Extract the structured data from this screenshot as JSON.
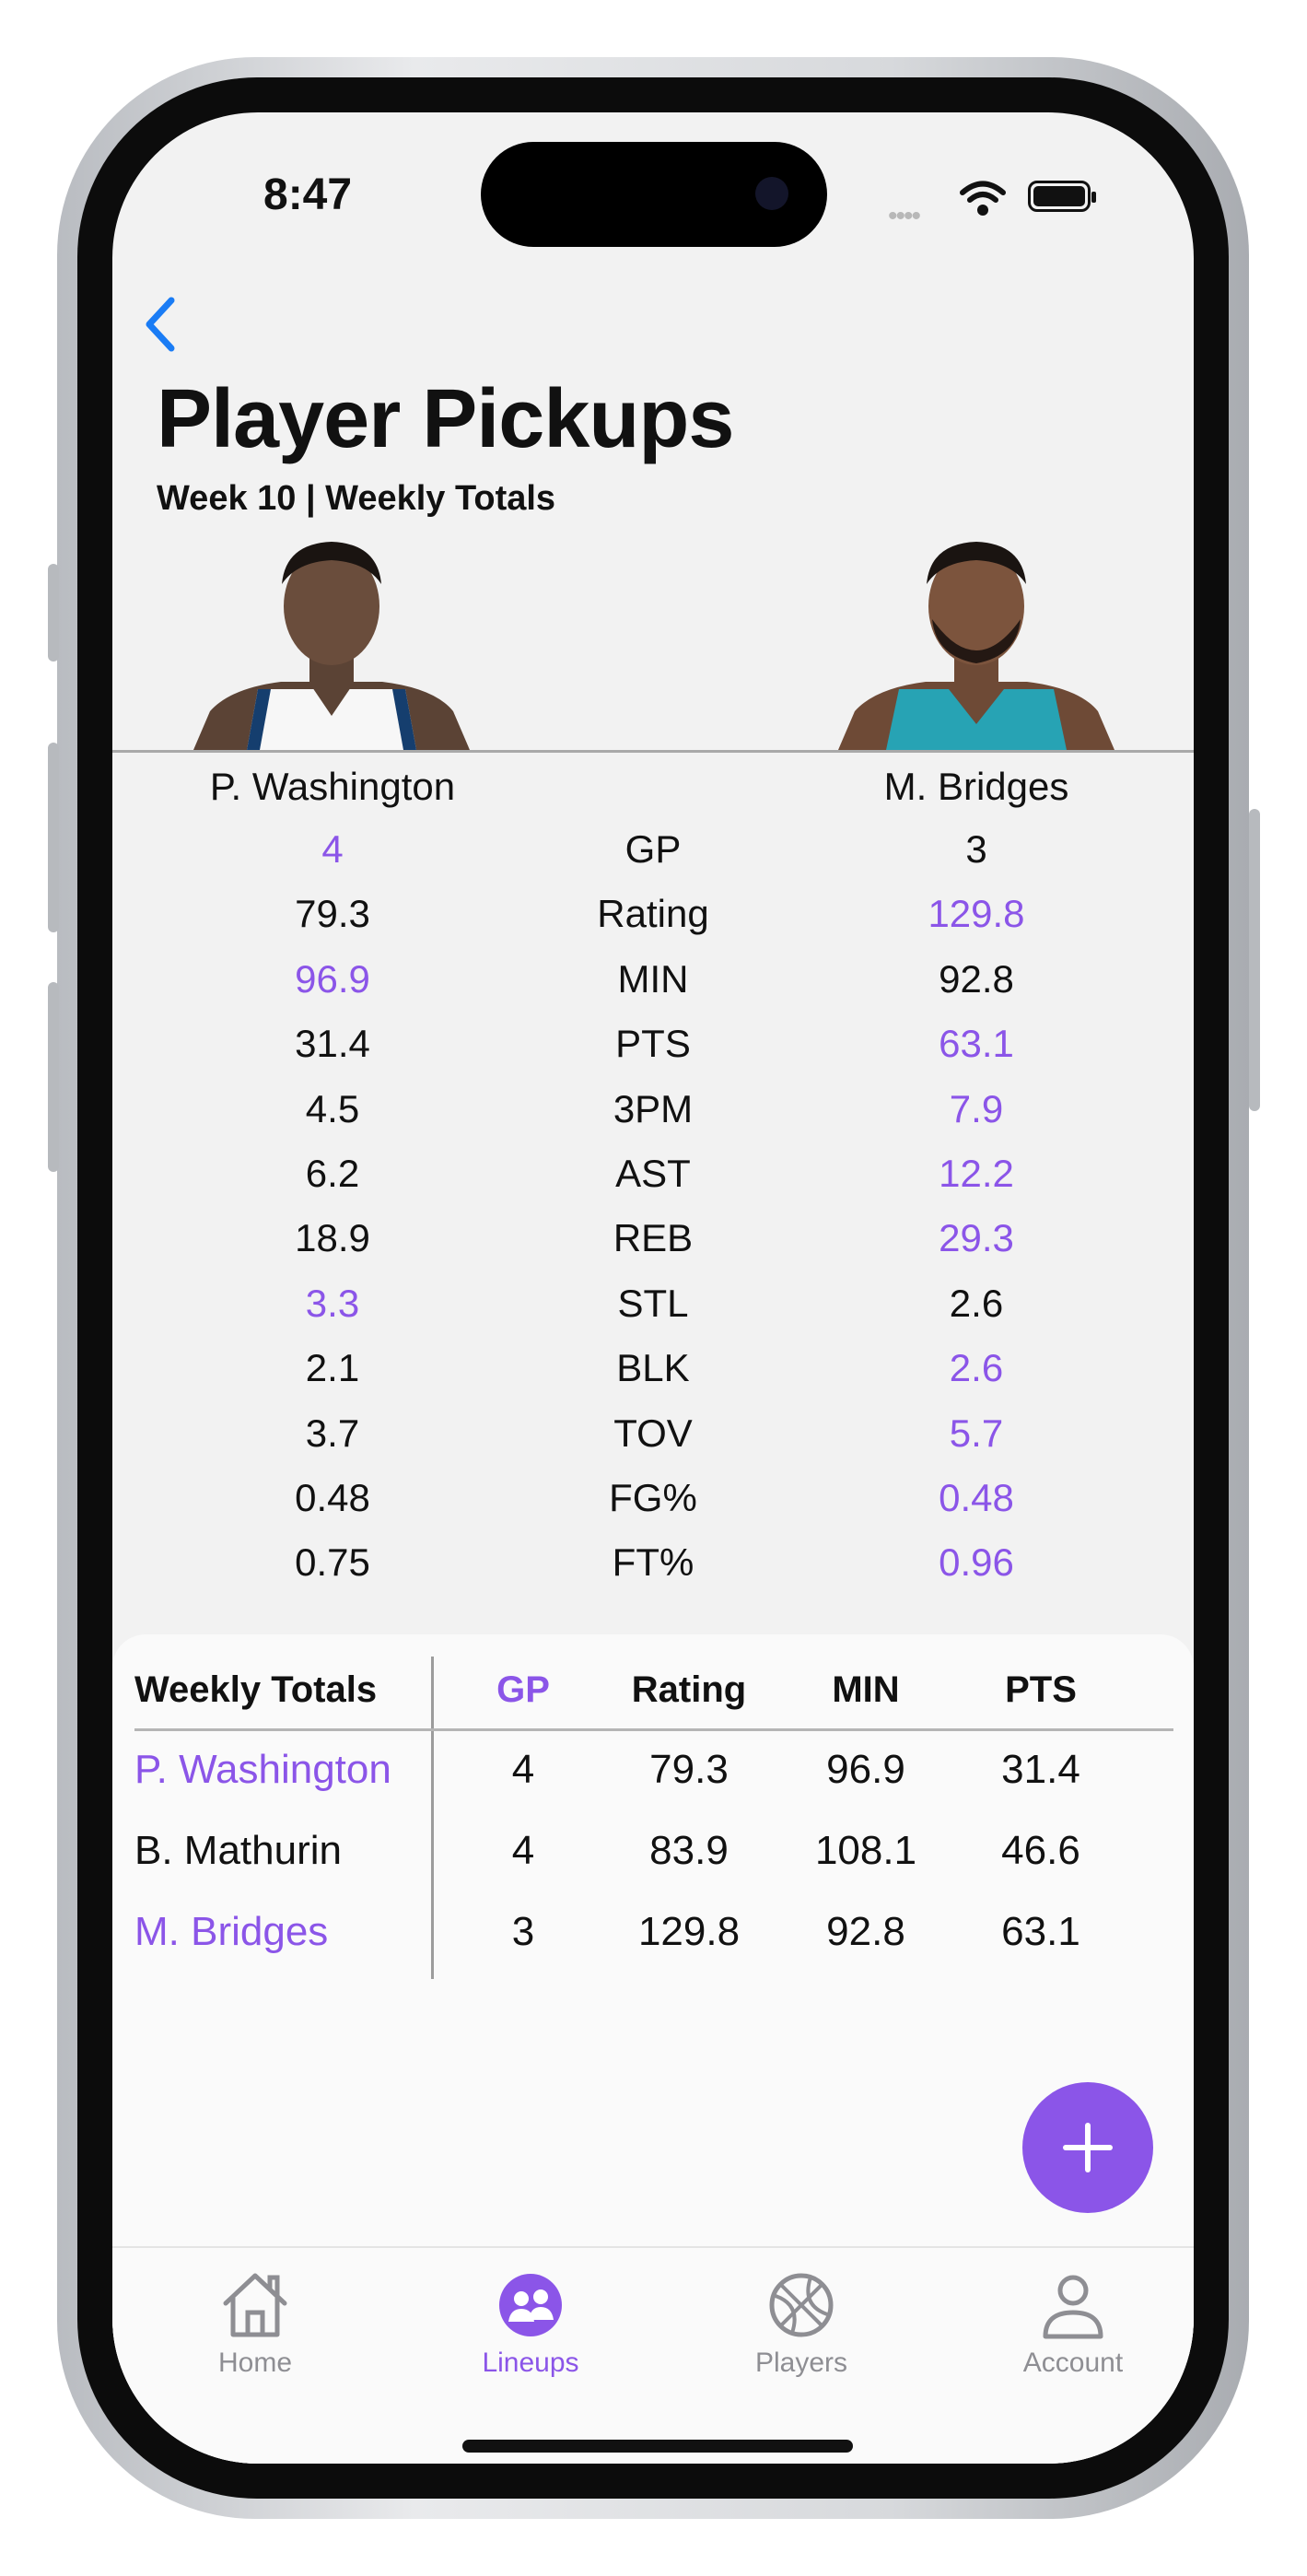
{
  "status_bar": {
    "time": "8:47",
    "signal": "••••"
  },
  "header": {
    "title": "Player Pickups",
    "subtitle": "Week 10 | Weekly Totals"
  },
  "players": {
    "left": "P. Washington",
    "right": "M. Bridges"
  },
  "comparison": [
    {
      "stat": "GP",
      "left": "4",
      "right": "3",
      "winner": "left"
    },
    {
      "stat": "Rating",
      "left": "79.3",
      "right": "129.8",
      "winner": "right"
    },
    {
      "stat": "MIN",
      "left": "96.9",
      "right": "92.8",
      "winner": "left"
    },
    {
      "stat": "PTS",
      "left": "31.4",
      "right": "63.1",
      "winner": "right"
    },
    {
      "stat": "3PM",
      "left": "4.5",
      "right": "7.9",
      "winner": "right"
    },
    {
      "stat": "AST",
      "left": "6.2",
      "right": "12.2",
      "winner": "right"
    },
    {
      "stat": "REB",
      "left": "18.9",
      "right": "29.3",
      "winner": "right"
    },
    {
      "stat": "STL",
      "left": "3.3",
      "right": "2.6",
      "winner": "left"
    },
    {
      "stat": "BLK",
      "left": "2.1",
      "right": "2.6",
      "winner": "right"
    },
    {
      "stat": "TOV",
      "left": "3.7",
      "right": "5.7",
      "winner": "right"
    },
    {
      "stat": "FG%",
      "left": "0.48",
      "right": "0.48",
      "winner": "right"
    },
    {
      "stat": "FT%",
      "left": "0.75",
      "right": "0.96",
      "winner": "right"
    }
  ],
  "totals_table": {
    "title": "Weekly Totals",
    "columns": [
      "GP",
      "Rating",
      "MIN",
      "PTS"
    ],
    "rows": [
      {
        "name": "P. Washington",
        "highlight": true,
        "values": [
          "4",
          "79.3",
          "96.9",
          "31.4"
        ]
      },
      {
        "name": "B. Mathurin",
        "highlight": false,
        "values": [
          "4",
          "83.9",
          "108.1",
          "46.6"
        ]
      },
      {
        "name": "M. Bridges",
        "highlight": true,
        "values": [
          "3",
          "129.8",
          "92.8",
          "63.1"
        ]
      }
    ]
  },
  "tabs": [
    {
      "label": "Home",
      "icon": "house-icon",
      "active": false
    },
    {
      "label": "Lineups",
      "icon": "people-icon",
      "active": true
    },
    {
      "label": "Players",
      "icon": "basketball-icon",
      "active": false
    },
    {
      "label": "Account",
      "icon": "person-icon",
      "active": false
    }
  ],
  "colors": {
    "accent": "#8b55e8",
    "link": "#1a7cf5",
    "text": "#111111",
    "background": "#f2f2f2"
  }
}
